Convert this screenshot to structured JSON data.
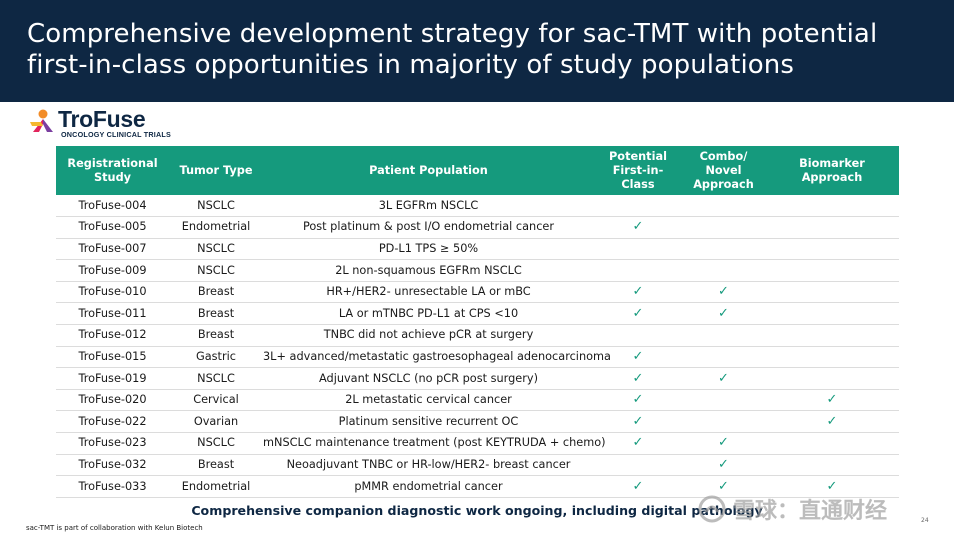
{
  "slide": {
    "title": "Comprehensive development strategy for sac-TMT with potential first-in-class opportunities in majority of study populations"
  },
  "logo": {
    "name": "TroFuse",
    "subtitle": "ONCOLOGY CLINICAL TRIALS"
  },
  "table": {
    "headers": {
      "study": "Registrational Study",
      "tumor": "Tumor Type",
      "population": "Patient Population",
      "first": "Potential First-in-Class",
      "combo": "Combo/ Novel Approach",
      "biomarker": "Biomarker Approach"
    },
    "check_symbol": "✓",
    "rows": [
      {
        "study": "TroFuse-004",
        "tumor": "NSCLC",
        "population": "3L EGFRm NSCLC",
        "first": "",
        "combo": "",
        "biomarker": ""
      },
      {
        "study": "TroFuse-005",
        "tumor": "Endometrial",
        "population": "Post platinum & post I/O endometrial cancer",
        "first": "✓",
        "combo": "",
        "biomarker": ""
      },
      {
        "study": "TroFuse-007",
        "tumor": "NSCLC",
        "population": "PD-L1 TPS ≥ 50%",
        "first": "",
        "combo": "",
        "biomarker": ""
      },
      {
        "study": "TroFuse-009",
        "tumor": "NSCLC",
        "population": "2L non-squamous EGFRm NSCLC",
        "first": "",
        "combo": "",
        "biomarker": ""
      },
      {
        "study": "TroFuse-010",
        "tumor": "Breast",
        "population": "HR+/HER2- unresectable LA or mBC",
        "first": "✓",
        "combo": "✓",
        "biomarker": ""
      },
      {
        "study": "TroFuse-011",
        "tumor": "Breast",
        "population": "LA or mTNBC PD-L1 at CPS <10",
        "first": "✓",
        "combo": "✓",
        "biomarker": ""
      },
      {
        "study": "TroFuse-012",
        "tumor": "Breast",
        "population": "TNBC did not achieve pCR at surgery",
        "first": "",
        "combo": "",
        "biomarker": ""
      },
      {
        "study": "TroFuse-015",
        "tumor": "Gastric",
        "population": "3L+ advanced/metastatic gastroesophageal adenocarcinoma",
        "first": "✓",
        "combo": "",
        "biomarker": ""
      },
      {
        "study": "TroFuse-019",
        "tumor": "NSCLC",
        "population": "Adjuvant NSCLC (no pCR post surgery)",
        "first": "✓",
        "combo": "✓",
        "biomarker": ""
      },
      {
        "study": "TroFuse-020",
        "tumor": "Cervical",
        "population": "2L metastatic cervical cancer",
        "first": "✓",
        "combo": "",
        "biomarker": "✓"
      },
      {
        "study": "TroFuse-022",
        "tumor": "Ovarian",
        "population": "Platinum sensitive recurrent OC",
        "first": "✓",
        "combo": "",
        "biomarker": "✓"
      },
      {
        "study": "TroFuse-023",
        "tumor": "NSCLC",
        "population": "mNSCLC maintenance treatment (post KEYTRUDA + chemo)",
        "first": "✓",
        "combo": "✓",
        "biomarker": ""
      },
      {
        "study": "TroFuse-032",
        "tumor": "Breast",
        "population": "Neoadjuvant TNBC or HR-low/HER2- breast cancer",
        "first": "",
        "combo": "✓",
        "biomarker": ""
      },
      {
        "study": "TroFuse-033",
        "tumor": "Endometrial",
        "population": "pMMR endometrial cancer",
        "first": "✓",
        "combo": "✓",
        "biomarker": "✓"
      }
    ]
  },
  "footer": {
    "main_note": "Comprehensive companion diagnostic work ongoing, including digital pathology",
    "small_note": "sac-TMT is part of collaboration with Kelun Biotech",
    "watermark": "雪球：直通财经",
    "page_number": "24"
  },
  "colors": {
    "title_bar": "#0e2743",
    "header_green": "#159a7d",
    "check_green": "#159a7d"
  }
}
